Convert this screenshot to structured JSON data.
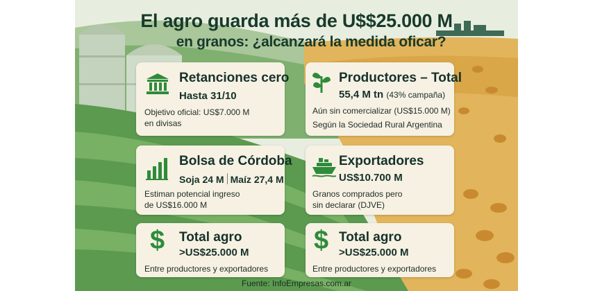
{
  "header": {
    "title_line1": "El agro guarda más de U$$25.000 M",
    "title_line2": "en granos: ¿alcanzará la medida oficar?"
  },
  "cards": {
    "retenciones": {
      "icon": "bank-icon",
      "title": "Retanciones cero",
      "subtitle": "Hasta 31/10",
      "body_line1": "Objetivo oficial: US$7.000 M",
      "body_line2": "en divisas"
    },
    "productores": {
      "icon": "plant-icon",
      "title": "Productores – Total",
      "subtitle_main": "55,4 M tn",
      "subtitle_note": "(43% campaña)",
      "body_line1": "Aún sin comercializar (US$15.000 M)",
      "body_line2": "Según la Sociedad Rural Argentina"
    },
    "bolsa": {
      "icon": "bar-chart-icon",
      "title": "Bolsa de Córdoba",
      "subtitle_a": "Soja 24 M",
      "subtitle_b": "Maíz 27,4 M",
      "body_line1": "Estiman potencial ingreso",
      "body_line2": "de US$16.000 M"
    },
    "exportadores": {
      "icon": "ship-icon",
      "title": "Exportadores",
      "subtitle": "US$10.700 M",
      "body_line1": "Granos comprados pero",
      "body_line2": "sin declarar (DJVE)"
    },
    "total_left": {
      "icon": "dollar-icon",
      "title": "Total agro",
      "subtitle": ">US$25.000 M",
      "body_line1": "Entre productores y exportadores"
    },
    "total_right": {
      "icon": "dollar-icon",
      "title": "Total agro",
      "subtitle": ">US$25.000 M",
      "body_line1": "Entre productores y exportadores"
    }
  },
  "footer": {
    "source": "Fuente: InfoEmpresas.com.ar"
  },
  "colors": {
    "icon_green": "#2e8b3a",
    "card_bg": "#f6f1e3",
    "title_text": "#173a2b",
    "field_green": "#5e9c52",
    "grain_gold": "#d9a545"
  }
}
